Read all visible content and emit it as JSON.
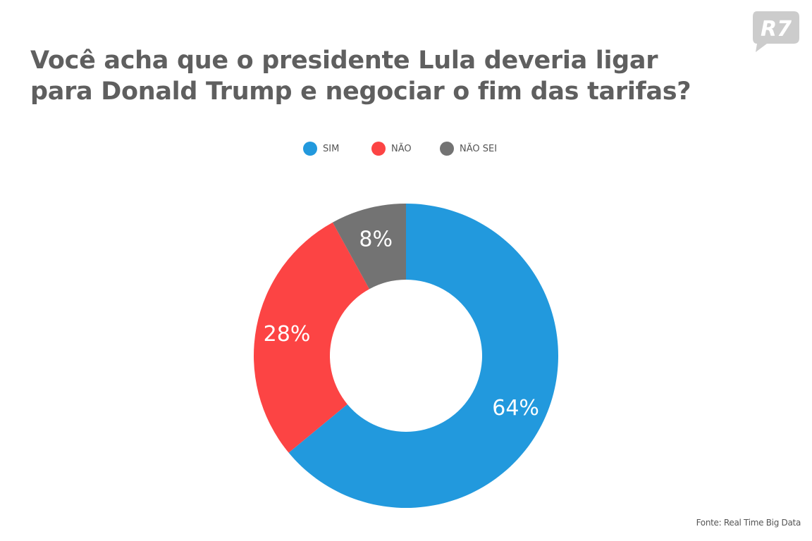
{
  "brand": {
    "logo_text": "R7",
    "logo_color": "#cccccc"
  },
  "chart_data": {
    "type": "pie",
    "donut": true,
    "title_lines": [
      "Você acha que o presidente Lula deveria ligar",
      "para Donald Trump e negociar o fim das tarifas?"
    ],
    "slices": [
      {
        "label": "SIM",
        "value": 64,
        "value_label": "64%",
        "color": "#2299dd"
      },
      {
        "label": "NÃO",
        "value": 28,
        "value_label": "28%",
        "color": "#fc4444"
      },
      {
        "label": "NÃO SEI",
        "value": 8,
        "value_label": "8%",
        "color": "#737373"
      }
    ],
    "start_angle_deg": 0,
    "direction": "clockwise",
    "legend_position": "top-center",
    "source": "Fonte: Real Time Big Data"
  }
}
